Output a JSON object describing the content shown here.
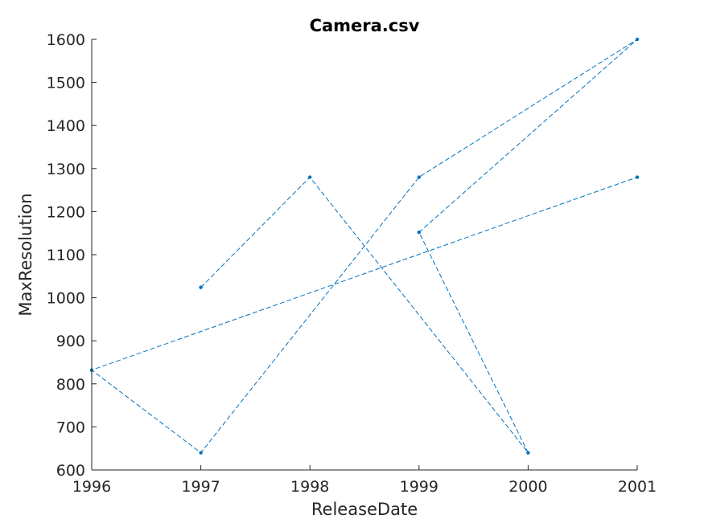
{
  "chart_data": {
    "type": "line",
    "title": "Camera.csv",
    "xlabel": "ReleaseDate",
    "ylabel": "MaxResolution",
    "xlim": [
      1996,
      2001
    ],
    "ylim": [
      600,
      1600
    ],
    "xticks": [
      1996,
      1997,
      1998,
      1999,
      2000,
      2001
    ],
    "yticks": [
      600,
      700,
      800,
      900,
      1000,
      1100,
      1200,
      1300,
      1400,
      1500,
      1600
    ],
    "grid": false,
    "line_style": "dashed",
    "marker": "dot",
    "series": [
      {
        "color": "#0072BD",
        "x": [
          1997,
          1998,
          2000,
          1999,
          2001,
          1999,
          1997,
          1996,
          2001
        ],
        "y": [
          1024,
          1280,
          640,
          1152,
          1600,
          1280,
          640,
          832,
          1280
        ]
      }
    ]
  }
}
